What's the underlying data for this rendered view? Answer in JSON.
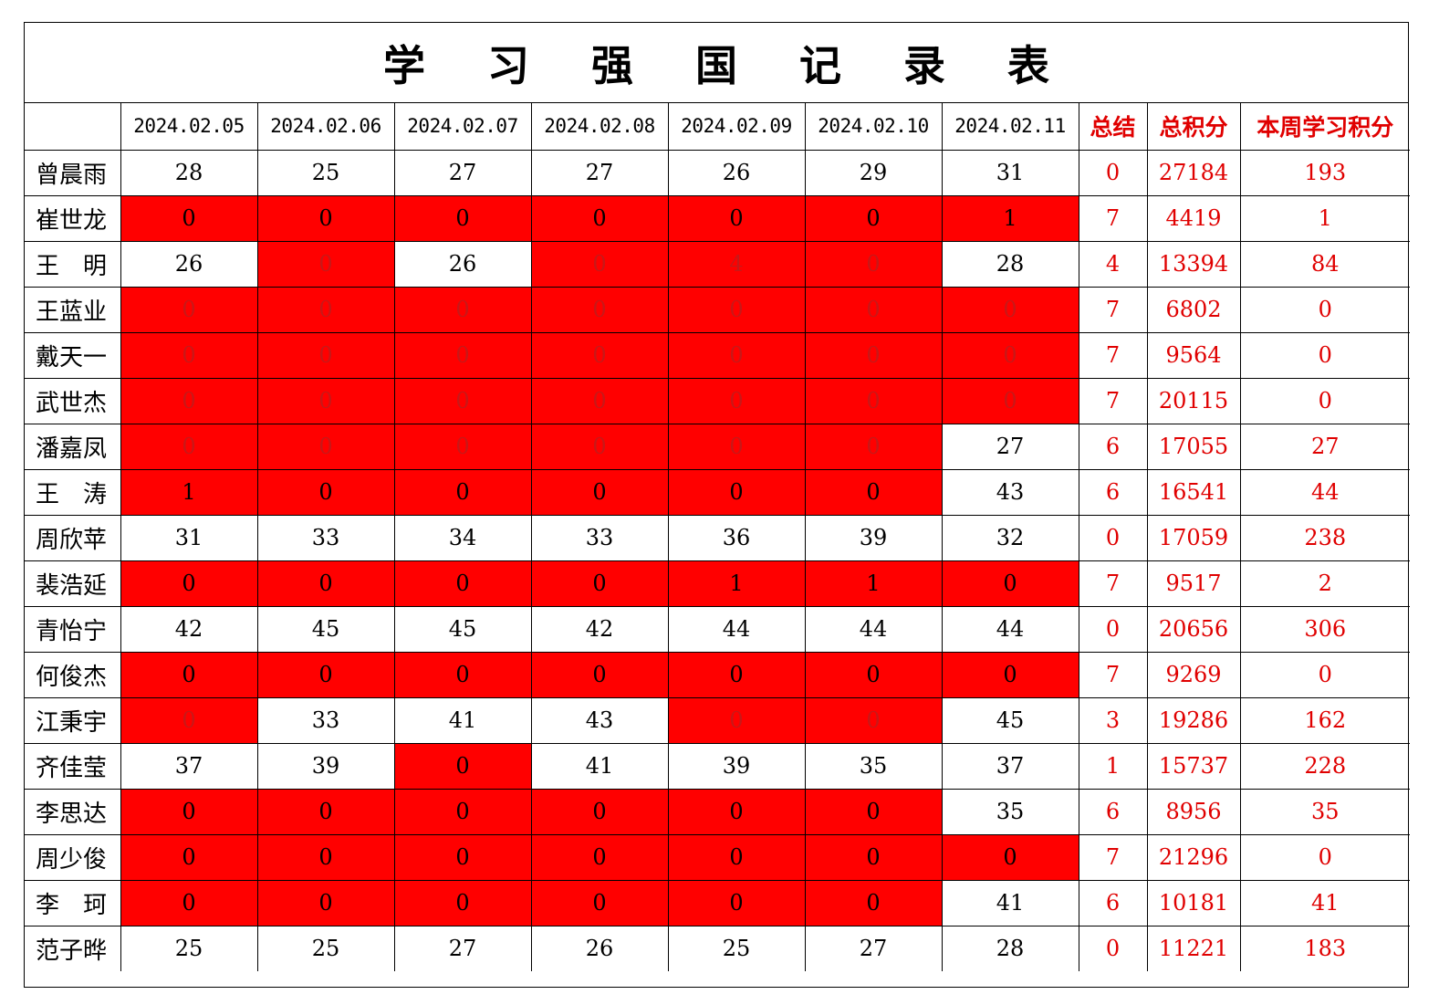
{
  "title": "学 习 强 国 记 录 表",
  "headers": {
    "dates": [
      "2024.02.05",
      "2024.02.06",
      "2024.02.07",
      "2024.02.08",
      "2024.02.09",
      "2024.02.10",
      "2024.02.11"
    ],
    "summary": "总结",
    "total_points": "总积分",
    "week_points": "本周学习积分"
  },
  "colors": {
    "highlight": "#ff0000",
    "stat_text": "#e00000",
    "border": "#000000"
  },
  "rows": [
    {
      "name": "曾晨雨",
      "days": [
        "28",
        "25",
        "27",
        "27",
        "26",
        "29",
        "31"
      ],
      "red": [
        0,
        0,
        0,
        0,
        0,
        0,
        0
      ],
      "summary": "0",
      "total": "27184",
      "week": "193"
    },
    {
      "name": "崔世龙",
      "days": [
        "0",
        "0",
        "0",
        "0",
        "0",
        "0",
        "1"
      ],
      "red": [
        1,
        1,
        1,
        1,
        1,
        1,
        1
      ],
      "summary": "7",
      "total": "4419",
      "week": "1"
    },
    {
      "name": "王　明",
      "days": [
        "26",
        "0",
        "26",
        "0",
        "4",
        "0",
        "28"
      ],
      "red": [
        0,
        2,
        0,
        2,
        2,
        2,
        0
      ],
      "summary": "4",
      "total": "13394",
      "week": "84"
    },
    {
      "name": "王蓝业",
      "days": [
        "0",
        "0",
        "0",
        "0",
        "0",
        "0",
        "0"
      ],
      "red": [
        2,
        2,
        2,
        2,
        2,
        2,
        2
      ],
      "summary": "7",
      "total": "6802",
      "week": "0"
    },
    {
      "name": "戴天一",
      "days": [
        "0",
        "0",
        "0",
        "0",
        "0",
        "0",
        "0"
      ],
      "red": [
        2,
        2,
        2,
        2,
        2,
        2,
        2
      ],
      "summary": "7",
      "total": "9564",
      "week": "0"
    },
    {
      "name": "武世杰",
      "days": [
        "0",
        "0",
        "0",
        "0",
        "0",
        "0",
        "0"
      ],
      "red": [
        2,
        2,
        2,
        2,
        2,
        2,
        2
      ],
      "summary": "7",
      "total": "20115",
      "week": "0"
    },
    {
      "name": "潘嘉凤",
      "days": [
        "0",
        "0",
        "0",
        "0",
        "0",
        "0",
        "27"
      ],
      "red": [
        2,
        2,
        2,
        2,
        2,
        2,
        0
      ],
      "summary": "6",
      "total": "17055",
      "week": "27"
    },
    {
      "name": "王　涛",
      "days": [
        "1",
        "0",
        "0",
        "0",
        "0",
        "0",
        "43"
      ],
      "red": [
        1,
        1,
        1,
        1,
        1,
        1,
        0
      ],
      "summary": "6",
      "total": "16541",
      "week": "44"
    },
    {
      "name": "周欣苹",
      "days": [
        "31",
        "33",
        "34",
        "33",
        "36",
        "39",
        "32"
      ],
      "red": [
        0,
        0,
        0,
        0,
        0,
        0,
        0
      ],
      "summary": "0",
      "total": "17059",
      "week": "238"
    },
    {
      "name": "裴浩延",
      "days": [
        "0",
        "0",
        "0",
        "0",
        "1",
        "1",
        "0"
      ],
      "red": [
        1,
        1,
        1,
        1,
        1,
        1,
        1
      ],
      "summary": "7",
      "total": "9517",
      "week": "2"
    },
    {
      "name": "青怡宁",
      "days": [
        "42",
        "45",
        "45",
        "42",
        "44",
        "44",
        "44"
      ],
      "red": [
        0,
        0,
        0,
        0,
        0,
        0,
        0
      ],
      "summary": "0",
      "total": "20656",
      "week": "306"
    },
    {
      "name": "何俊杰",
      "days": [
        "0",
        "0",
        "0",
        "0",
        "0",
        "0",
        "0"
      ],
      "red": [
        1,
        1,
        1,
        1,
        1,
        1,
        1
      ],
      "summary": "7",
      "total": "9269",
      "week": "0"
    },
    {
      "name": "江秉宇",
      "days": [
        "0",
        "33",
        "41",
        "43",
        "0",
        "0",
        "45"
      ],
      "red": [
        2,
        0,
        0,
        0,
        2,
        2,
        0
      ],
      "summary": "3",
      "total": "19286",
      "week": "162"
    },
    {
      "name": "齐佳莹",
      "days": [
        "37",
        "39",
        "0",
        "41",
        "39",
        "35",
        "37"
      ],
      "red": [
        0,
        0,
        1,
        0,
        0,
        0,
        0
      ],
      "summary": "1",
      "total": "15737",
      "week": "228"
    },
    {
      "name": "李思达",
      "days": [
        "0",
        "0",
        "0",
        "0",
        "0",
        "0",
        "35"
      ],
      "red": [
        1,
        1,
        1,
        1,
        1,
        1,
        0
      ],
      "summary": "6",
      "total": "8956",
      "week": "35"
    },
    {
      "name": "周少俊",
      "days": [
        "0",
        "0",
        "0",
        "0",
        "0",
        "0",
        "0"
      ],
      "red": [
        1,
        1,
        1,
        1,
        1,
        1,
        1
      ],
      "summary": "7",
      "total": "21296",
      "week": "0"
    },
    {
      "name": "李　珂",
      "days": [
        "0",
        "0",
        "0",
        "0",
        "0",
        "0",
        "41"
      ],
      "red": [
        1,
        1,
        1,
        1,
        1,
        1,
        0
      ],
      "summary": "6",
      "total": "10181",
      "week": "41"
    },
    {
      "name": "范子晔",
      "days": [
        "25",
        "25",
        "27",
        "26",
        "25",
        "27",
        "28"
      ],
      "red": [
        0,
        0,
        0,
        0,
        0,
        0,
        0
      ],
      "summary": "0",
      "total": "11221",
      "week": "183"
    }
  ]
}
